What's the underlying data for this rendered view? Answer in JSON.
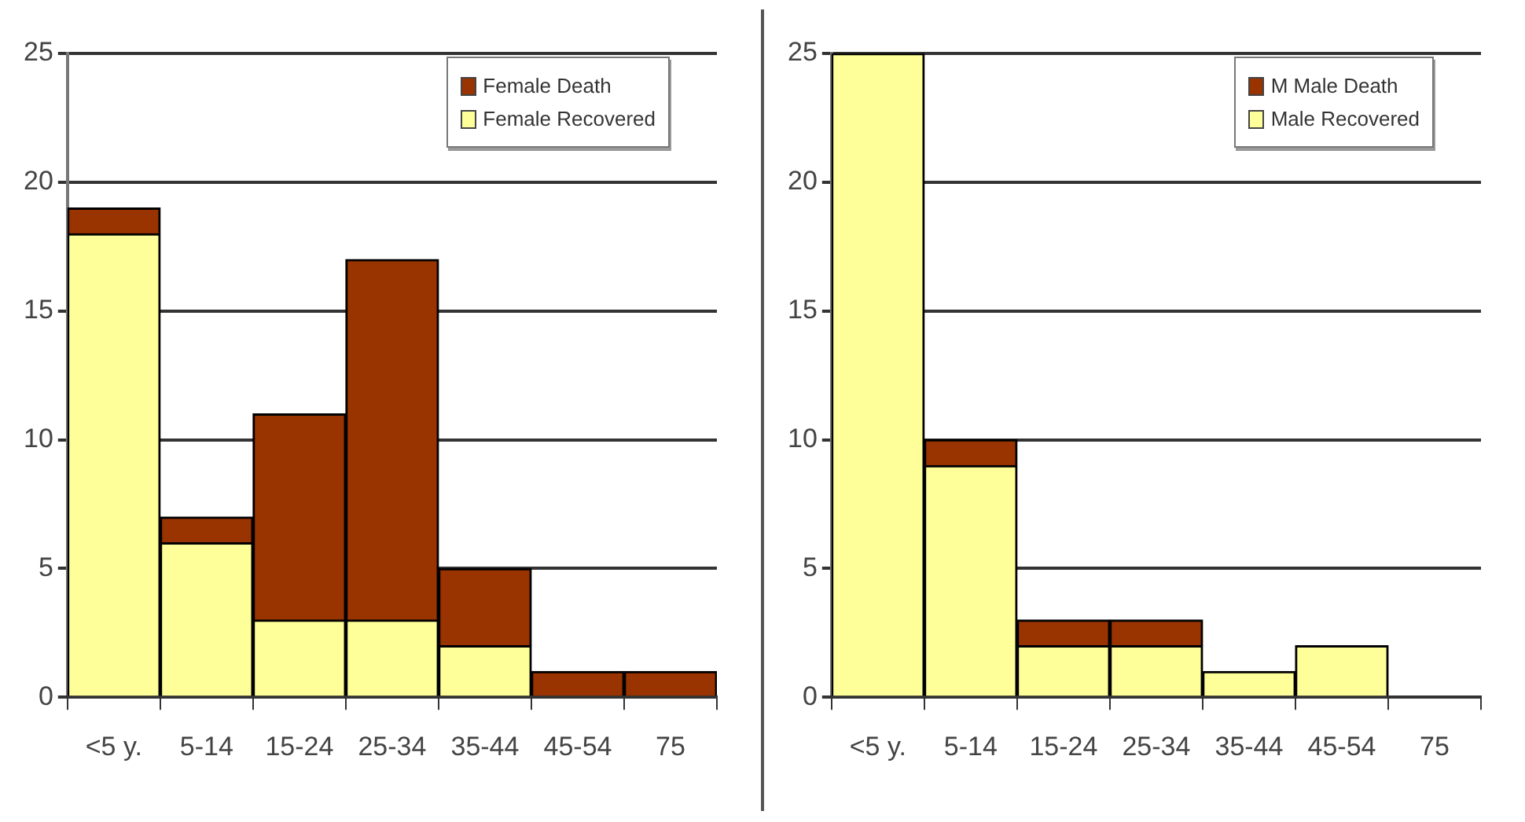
{
  "chart_data": [
    {
      "type": "bar",
      "stacked": true,
      "categories": [
        "<5 y.",
        "5-14",
        "15-24",
        "25-34",
        "35-44",
        "45-54",
        "75"
      ],
      "series": [
        {
          "name": "Female Recovered",
          "color": "#ffff99",
          "values": [
            18,
            6,
            3,
            3,
            2,
            0,
            0
          ]
        },
        {
          "name": "Female Death",
          "color": "#993300",
          "values": [
            1,
            1,
            8,
            14,
            3,
            1,
            1
          ]
        }
      ],
      "ylim": [
        0,
        25
      ],
      "yticks": [
        0,
        5,
        10,
        15,
        20,
        25
      ],
      "grid": "y",
      "legend": "top right"
    },
    {
      "type": "bar",
      "stacked": true,
      "categories": [
        "<5 y.",
        "5-14",
        "15-24",
        "25-34",
        "35-44",
        "45-54",
        "75"
      ],
      "series": [
        {
          "name": "Male Recovered",
          "color": "#ffff99",
          "values": [
            25,
            9,
            2,
            2,
            1,
            2,
            0
          ]
        },
        {
          "name": "M Male Death",
          "color": "#993300",
          "values": [
            0,
            1,
            1,
            1,
            0,
            0,
            0
          ]
        }
      ],
      "ylim": [
        0,
        25
      ],
      "yticks": [
        0,
        5,
        10,
        15,
        20,
        25
      ],
      "grid": "y",
      "legend": "top right"
    }
  ]
}
